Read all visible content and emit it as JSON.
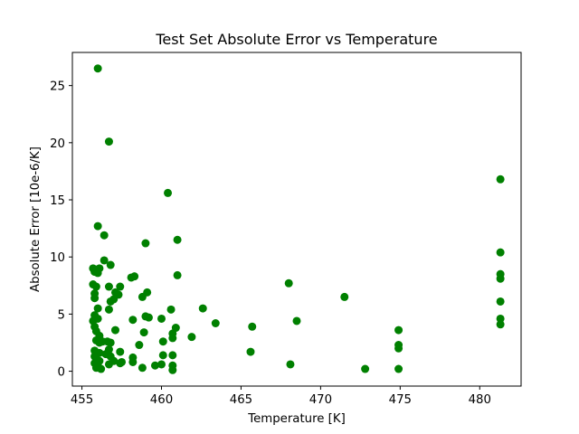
{
  "chart_data": {
    "type": "scatter",
    "title": "Test Set Absolute Error vs Temperature",
    "xlabel": "Temperature [K]",
    "ylabel": "Absolute Error [10e-6/K]",
    "xlim": [
      454.4,
      482.6
    ],
    "ylim": [
      -1.3,
      27.9
    ],
    "xticks": [
      455,
      460,
      465,
      470,
      475,
      480
    ],
    "yticks": [
      0,
      5,
      10,
      15,
      20,
      25
    ],
    "grid": false,
    "marker_color": "#008000",
    "series": [
      {
        "points": [
          [
            456.0,
            26.5
          ],
          [
            456.7,
            20.1
          ],
          [
            460.4,
            15.6
          ],
          [
            481.3,
            16.8
          ],
          [
            456.0,
            12.7
          ],
          [
            456.4,
            11.9
          ],
          [
            459.0,
            11.2
          ],
          [
            461.0,
            11.5
          ],
          [
            481.3,
            10.4
          ],
          [
            481.3,
            8.5
          ],
          [
            481.3,
            8.1
          ],
          [
            481.3,
            6.1
          ],
          [
            481.3,
            4.6
          ],
          [
            481.3,
            4.1
          ],
          [
            455.7,
            9.0
          ],
          [
            455.9,
            8.8
          ],
          [
            456.1,
            9.0
          ],
          [
            455.8,
            8.7
          ],
          [
            456.0,
            8.6
          ],
          [
            456.4,
            9.7
          ],
          [
            456.8,
            9.3
          ],
          [
            455.7,
            7.6
          ],
          [
            455.9,
            7.4
          ],
          [
            455.8,
            6.8
          ],
          [
            455.8,
            6.4
          ],
          [
            456.7,
            7.4
          ],
          [
            456.8,
            6.1
          ],
          [
            457.0,
            6.3
          ],
          [
            456.7,
            5.4
          ],
          [
            457.1,
            6.9
          ],
          [
            457.4,
            7.4
          ],
          [
            457.3,
            6.7
          ],
          [
            458.1,
            8.2
          ],
          [
            458.3,
            8.3
          ],
          [
            458.8,
            6.5
          ],
          [
            459.1,
            6.9
          ],
          [
            461.0,
            8.4
          ],
          [
            468.0,
            7.7
          ],
          [
            471.5,
            6.5
          ],
          [
            456.0,
            5.5
          ],
          [
            455.8,
            4.9
          ],
          [
            455.7,
            4.4
          ],
          [
            456.0,
            4.6
          ],
          [
            455.8,
            3.9
          ],
          [
            455.9,
            3.5
          ],
          [
            456.1,
            3.1
          ],
          [
            455.9,
            2.7
          ],
          [
            456.1,
            2.5
          ],
          [
            456.3,
            2.6
          ],
          [
            456.6,
            2.6
          ],
          [
            456.8,
            2.5
          ],
          [
            457.1,
            3.6
          ],
          [
            456.7,
            1.9
          ],
          [
            455.8,
            1.8
          ],
          [
            456.1,
            1.6
          ],
          [
            455.8,
            1.3
          ],
          [
            455.9,
            1.1
          ],
          [
            456.1,
            0.9
          ],
          [
            455.8,
            0.7
          ],
          [
            456.0,
            0.5
          ],
          [
            455.9,
            0.3
          ],
          [
            456.2,
            0.2
          ],
          [
            456.5,
            1.5
          ],
          [
            456.8,
            1.3
          ],
          [
            457.0,
            0.9
          ],
          [
            456.7,
            0.6
          ],
          [
            457.4,
            1.7
          ],
          [
            457.5,
            0.8
          ],
          [
            457.4,
            0.7
          ],
          [
            458.2,
            4.5
          ],
          [
            459.0,
            4.8
          ],
          [
            459.2,
            4.7
          ],
          [
            458.9,
            3.4
          ],
          [
            458.6,
            2.3
          ],
          [
            458.2,
            1.2
          ],
          [
            458.2,
            0.8
          ],
          [
            458.8,
            0.3
          ],
          [
            459.6,
            0.5
          ],
          [
            460.0,
            4.6
          ],
          [
            460.1,
            2.6
          ],
          [
            460.1,
            1.4
          ],
          [
            460.6,
            5.4
          ],
          [
            460.9,
            3.8
          ],
          [
            460.7,
            3.3
          ],
          [
            460.7,
            2.9
          ],
          [
            460.7,
            1.4
          ],
          [
            460.7,
            0.5
          ],
          [
            460.7,
            0.1
          ],
          [
            460.0,
            0.6
          ],
          [
            461.9,
            3.0
          ],
          [
            462.6,
            5.5
          ],
          [
            463.4,
            4.2
          ],
          [
            465.7,
            3.9
          ],
          [
            465.6,
            1.7
          ],
          [
            468.5,
            4.4
          ],
          [
            468.1,
            0.6
          ],
          [
            472.8,
            0.2
          ],
          [
            474.9,
            3.6
          ],
          [
            474.9,
            2.3
          ],
          [
            474.9,
            2.0
          ],
          [
            474.9,
            0.2
          ]
        ]
      }
    ]
  }
}
